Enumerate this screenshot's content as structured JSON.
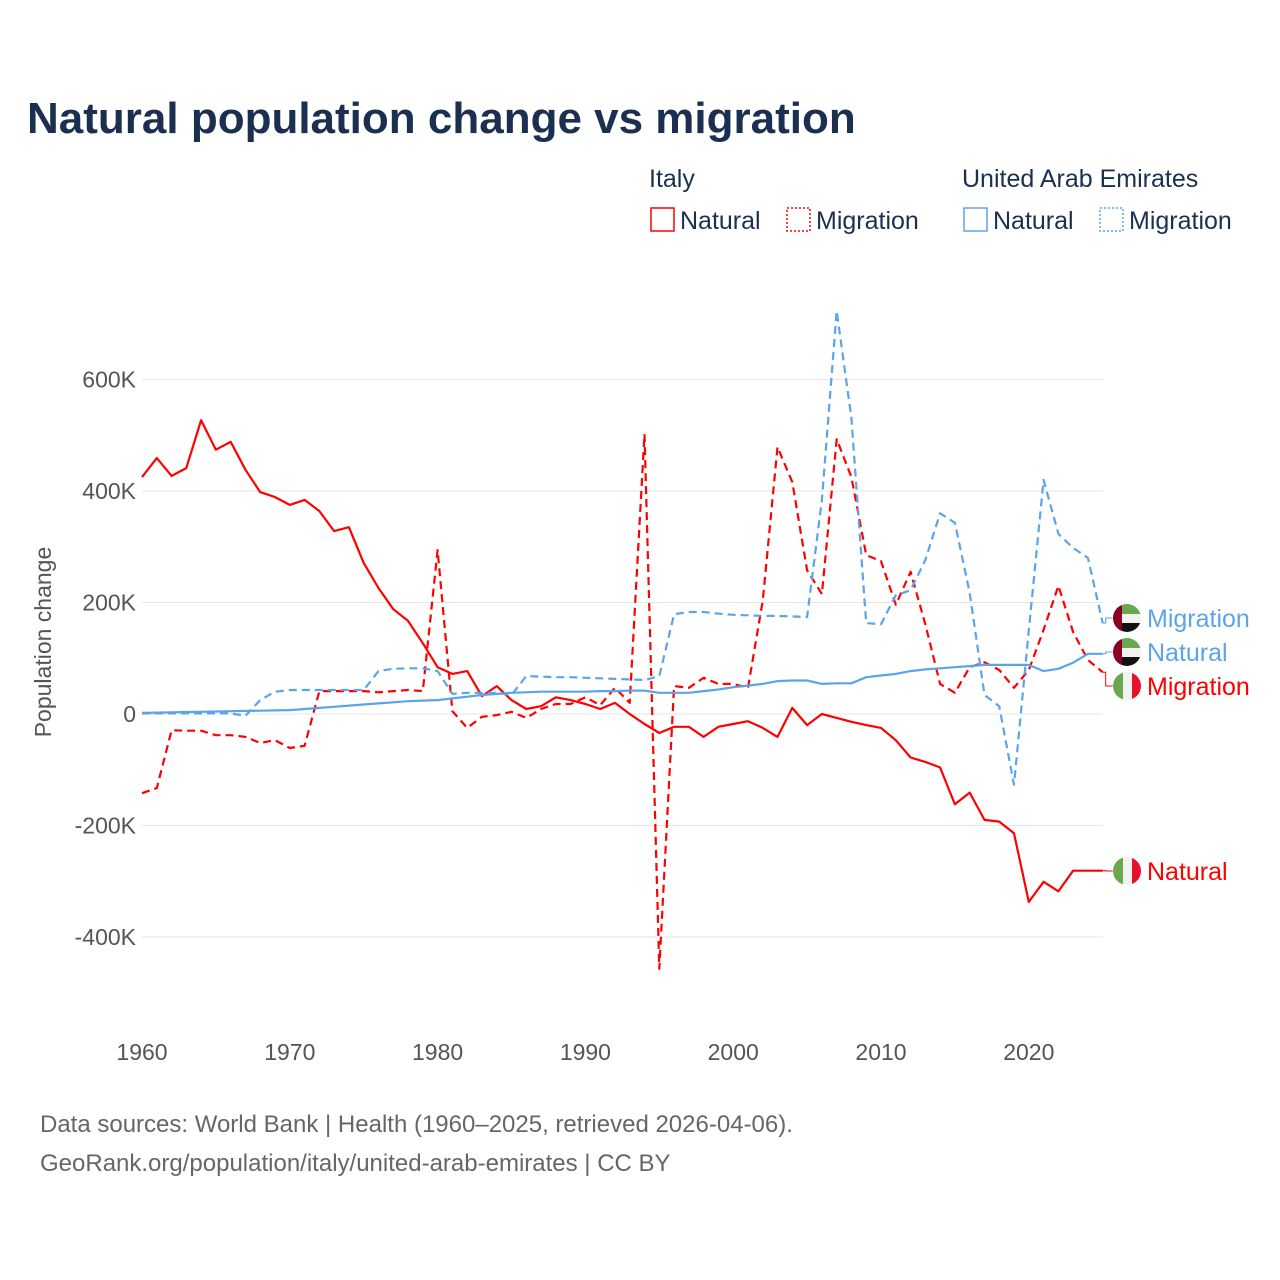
{
  "chart_data": {
    "type": "line",
    "title": "Natural population change vs migration",
    "xlabel": "",
    "ylabel": "Population change",
    "xlim": [
      1960,
      2025
    ],
    "ylim": [
      -450000,
      750000
    ],
    "x_ticks": [
      1960,
      1970,
      1980,
      1990,
      2000,
      2010,
      2020
    ],
    "x_tick_labels": [
      "1960",
      "1970",
      "1980",
      "1990",
      "2000",
      "2010",
      "2020"
    ],
    "y_ticks": [
      -400000,
      -200000,
      0,
      200000,
      400000,
      600000
    ],
    "y_tick_labels": [
      "-400K",
      "-200K",
      "0",
      "200K",
      "400K",
      "600K"
    ],
    "grid": "horizontal",
    "legend_placement": "top-right",
    "legend": {
      "groups": [
        {
          "name": "Italy",
          "entries": [
            "Natural",
            "Migration"
          ]
        },
        {
          "name": "United Arab Emirates",
          "entries": [
            "Natural",
            "Migration"
          ]
        }
      ]
    },
    "x": [
      1960,
      1961,
      1962,
      1963,
      1964,
      1965,
      1966,
      1967,
      1968,
      1969,
      1970,
      1971,
      1972,
      1973,
      1974,
      1975,
      1976,
      1977,
      1978,
      1979,
      1980,
      1981,
      1982,
      1983,
      1984,
      1985,
      1986,
      1987,
      1988,
      1989,
      1990,
      1991,
      1992,
      1993,
      1994,
      1995,
      1996,
      1997,
      1998,
      1999,
      2000,
      2001,
      2002,
      2003,
      2004,
      2005,
      2006,
      2007,
      2008,
      2009,
      2010,
      2011,
      2012,
      2013,
      2014,
      2015,
      2016,
      2017,
      2018,
      2019,
      2020,
      2021,
      2022,
      2023,
      2024,
      2025
    ],
    "series": [
      {
        "name": "Natural",
        "country": "Italy",
        "color": "#ff0000",
        "style": "solid",
        "end_label": "Natural",
        "values": [
          425000,
          459000,
          427000,
          441000,
          527000,
          474000,
          488000,
          438000,
          398000,
          389000,
          375000,
          384000,
          364000,
          328000,
          335000,
          271000,
          226000,
          188000,
          167000,
          127000,
          84000,
          72000,
          77000,
          32000,
          50000,
          25000,
          9000,
          14000,
          30000,
          25000,
          18000,
          9000,
          20000,
          0,
          -18000,
          -34000,
          -23000,
          -23000,
          -41000,
          -23000,
          -18000,
          -13000,
          -25000,
          -41000,
          11000,
          -20000,
          0,
          -7000,
          -14000,
          -20000,
          -25000,
          -47000,
          -78000,
          -86000,
          -96000,
          -162000,
          -141000,
          -190000,
          -193000,
          -214000,
          -337000,
          -301000,
          -318000,
          -281000,
          -281000,
          -281000
        ]
      },
      {
        "name": "Migration",
        "country": "Italy",
        "color": "#ff0000",
        "style": "dashed",
        "end_label": "Migration",
        "values": [
          -142000,
          -133000,
          -29000,
          -30000,
          -30000,
          -38000,
          -38000,
          -41000,
          -52000,
          -47000,
          -61000,
          -57000,
          41000,
          41000,
          41000,
          41000,
          39000,
          41000,
          43000,
          41000,
          294000,
          5000,
          -25000,
          -5000,
          -2000,
          4000,
          -7000,
          9000,
          18000,
          18000,
          30000,
          16000,
          47000,
          20000,
          502000,
          -457000,
          50000,
          47000,
          65000,
          54000,
          54000,
          47000,
          204000,
          479000,
          416000,
          258000,
          215000,
          493000,
          425000,
          285000,
          274000,
          196000,
          255000,
          161000,
          54000,
          38000,
          84000,
          93000,
          79000,
          47000,
          79000,
          151000,
          230000,
          147000,
          97000,
          75000
        ]
      },
      {
        "name": "Natural",
        "country": "United Arab Emirates",
        "color": "#5ba4ea",
        "style": "solid",
        "end_label": "Natural",
        "values": [
          2000,
          2500,
          3000,
          3500,
          4000,
          4500,
          5000,
          5500,
          6000,
          6500,
          7000,
          9000,
          11000,
          13000,
          15000,
          17000,
          19000,
          21000,
          23000,
          24000,
          25000,
          28000,
          31000,
          34000,
          36000,
          38000,
          39000,
          40000,
          40000,
          40000,
          40000,
          41000,
          41000,
          42000,
          42000,
          38000,
          38000,
          38000,
          41000,
          44000,
          48000,
          51000,
          54000,
          59000,
          60000,
          60000,
          54000,
          55000,
          55000,
          66000,
          69000,
          72000,
          77000,
          80000,
          82000,
          84000,
          86000,
          88000,
          88000,
          88000,
          88000,
          77000,
          81000,
          92000,
          108000,
          108000
        ]
      },
      {
        "name": "Migration",
        "country": "United Arab Emirates",
        "color": "#5ba4ea",
        "style": "dashed",
        "end_label": "Migration",
        "values": [
          1000,
          1000,
          1000,
          1000,
          1000,
          1000,
          1000,
          -3000,
          25000,
          40000,
          43000,
          43000,
          43000,
          43000,
          43000,
          43000,
          77000,
          81000,
          82000,
          82000,
          77000,
          36000,
          38000,
          38000,
          38000,
          34000,
          68000,
          67000,
          66000,
          66000,
          65000,
          64000,
          63000,
          62000,
          61000,
          68000,
          179000,
          183000,
          183000,
          180000,
          178000,
          177000,
          176000,
          176000,
          175000,
          174000,
          384000,
          723000,
          531000,
          163000,
          161000,
          213000,
          222000,
          276000,
          360000,
          343000,
          217000,
          34000,
          14000,
          -127000,
          150000,
          420000,
          323000,
          298000,
          280000,
          163000
        ]
      }
    ]
  },
  "footer": {
    "line1": "Data sources: World Bank | Health (1960–2025, retrieved 2026-04-06).",
    "line2": "GeoRank.org/population/italy/united-arab-emirates | CC BY"
  }
}
